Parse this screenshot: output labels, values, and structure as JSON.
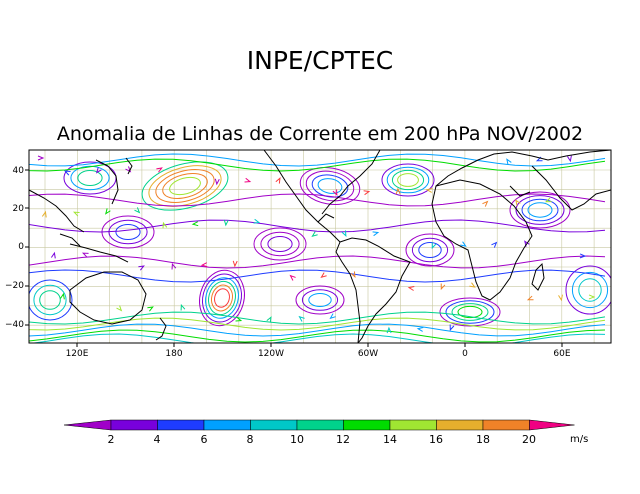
{
  "header": {
    "org_title": "INPE/CPTEC",
    "map_title": "Anomalia de Linhas de Corrente em 200 hPa NOV/2002"
  },
  "map": {
    "lat_labels": [
      "40",
      "20",
      "0",
      "−20",
      "−40"
    ],
    "lon_labels": [
      "120E",
      "180",
      "120W",
      "60W",
      "0",
      "60E"
    ]
  },
  "colorbar": {
    "units": "m/s",
    "labels": [
      "2",
      "4",
      "6",
      "8",
      "10",
      "12",
      "14",
      "16",
      "18",
      "20"
    ],
    "colors": [
      "#a000c8",
      "#7800dc",
      "#1e3cff",
      "#00a0ff",
      "#00c8c8",
      "#00d28c",
      "#00dc00",
      "#a0e632",
      "#e6af2d",
      "#f08228",
      "#fa3c3c",
      "#f00082"
    ]
  }
}
